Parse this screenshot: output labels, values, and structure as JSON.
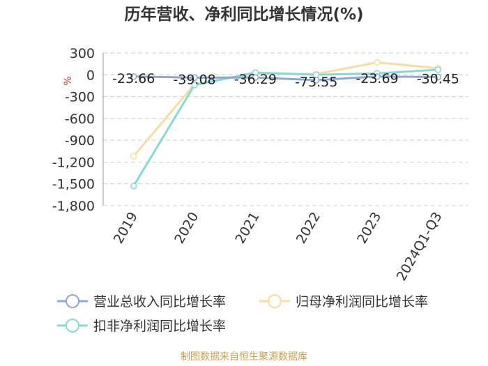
{
  "chart_data": {
    "type": "line",
    "title": "历年营收、净利同比增长情况(%)",
    "ylabel": "%",
    "categories": [
      "2019",
      "2020",
      "2021",
      "2022",
      "2023",
      "2024Q1-Q3"
    ],
    "y_ticks": [
      "300",
      "0",
      "-300",
      "-600",
      "-900",
      "-1,200",
      "-1,500",
      "-1,800"
    ],
    "ylim": [
      -1800,
      300
    ],
    "grid": true,
    "legend_position": "bottom",
    "series": [
      {
        "name": "营业总收入同比增长率",
        "color": "#8fa8d0",
        "values": [
          -23.66,
          -39.08,
          -36.29,
          -73.55,
          -23.69,
          -30.45
        ],
        "labels": [
          "-23.66",
          "-39.08",
          "-36.29",
          "-73.55",
          "-23.69",
          "-30.45"
        ]
      },
      {
        "name": "归母净利润同比增长率",
        "color": "#f8dca0",
        "values": [
          -1120,
          -130,
          20,
          10,
          170,
          90
        ]
      },
      {
        "name": "扣非净利润同比增长率",
        "color": "#88d8d8",
        "values": [
          -1530,
          -140,
          30,
          0,
          20,
          70
        ]
      }
    ],
    "source": "制图数据来自恒生聚源数据库"
  }
}
